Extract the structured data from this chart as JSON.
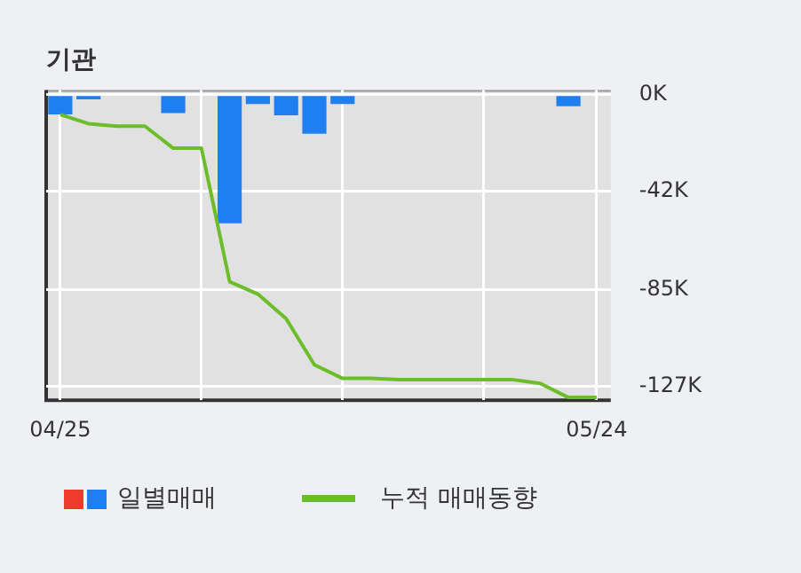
{
  "chart_data": {
    "type": "bar",
    "title": "기관",
    "categories": [
      "04/25",
      null,
      null,
      null,
      null,
      null,
      null,
      null,
      null,
      null,
      null,
      null,
      null,
      null,
      null,
      null,
      null,
      null,
      null,
      "05/24"
    ],
    "series": [
      {
        "name": "일별매매",
        "color": "#1f7ef0",
        "values": [
          -8.6,
          -2,
          null,
          null,
          -8,
          null,
          -56,
          -4,
          -9,
          -17,
          -4,
          null,
          null,
          null,
          null,
          null,
          null,
          null,
          -5,
          null
        ]
      },
      {
        "name": "누적 매매동향",
        "type": "line",
        "color": "#6cbd2a",
        "values": [
          -8.6,
          -12.6,
          -13.7,
          -13.7,
          -23.3,
          -23.3,
          -81.4,
          -86.8,
          -97.5,
          -117.6,
          -123.5,
          -123.5,
          -124,
          -124,
          -124,
          -124,
          -124,
          -125.7,
          -131.8,
          -131.8
        ]
      }
    ],
    "ylim": [
      -133,
      2
    ],
    "yticks": [
      {
        "value": 0,
        "label": "0K"
      },
      {
        "value": -42,
        "label": "-42K"
      },
      {
        "value": -85,
        "label": "-85K"
      },
      {
        "value": -127,
        "label": "-127K"
      }
    ],
    "grid": true,
    "legend": "bottom",
    "marker": "none"
  }
}
